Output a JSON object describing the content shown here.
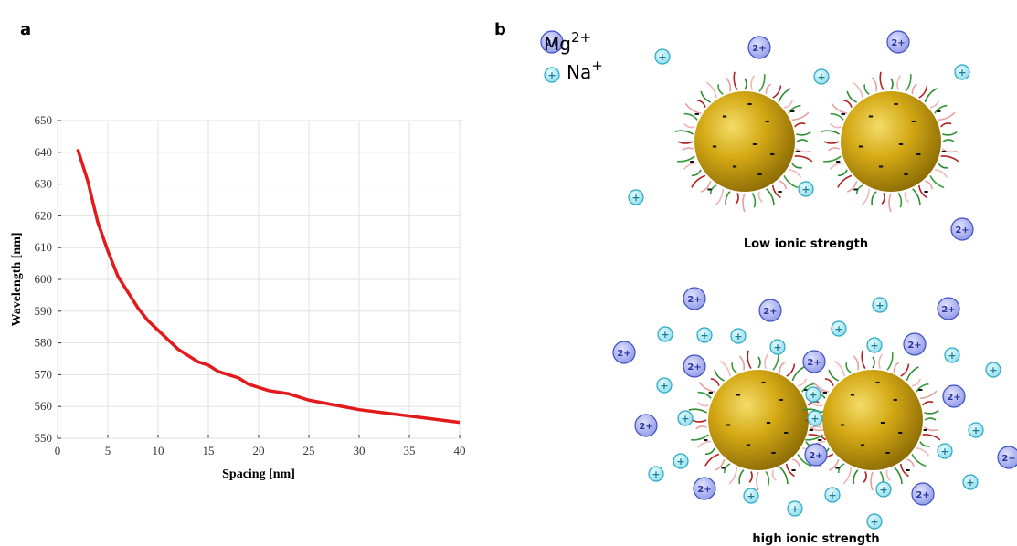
{
  "chart_data": {
    "type": "line",
    "xlabel": "Spacing [nm]",
    "ylabel": "Wavelength [nm]",
    "x": [
      2,
      3,
      4,
      5,
      6,
      7,
      8,
      9,
      10,
      12,
      14,
      15,
      16,
      18,
      19,
      21,
      23,
      25,
      30,
      35,
      40
    ],
    "values": [
      641,
      631,
      618,
      609,
      601,
      596,
      591,
      587,
      584,
      578,
      574,
      573,
      571,
      569,
      567,
      565,
      564,
      562,
      559,
      557,
      555
    ],
    "color": "#e31a1c",
    "xlim": [
      0,
      40
    ],
    "xticks": [
      0,
      5,
      10,
      15,
      20,
      25,
      30,
      35,
      40
    ],
    "ylim": [
      550,
      650
    ],
    "yticks": [
      550,
      560,
      570,
      580,
      590,
      600,
      610,
      620,
      630,
      640,
      650
    ],
    "grid": true
  },
  "panels": {
    "a": "a",
    "b": "b"
  },
  "legend": {
    "mg": {
      "base": "Mg",
      "sup": "2+"
    },
    "na": {
      "base": "Na",
      "sup": "+"
    }
  },
  "ion_labels": {
    "mg": "2+",
    "na": "+"
  },
  "charge": "-",
  "captions": {
    "low": "Low ionic strength",
    "high": "high ionic strength"
  }
}
